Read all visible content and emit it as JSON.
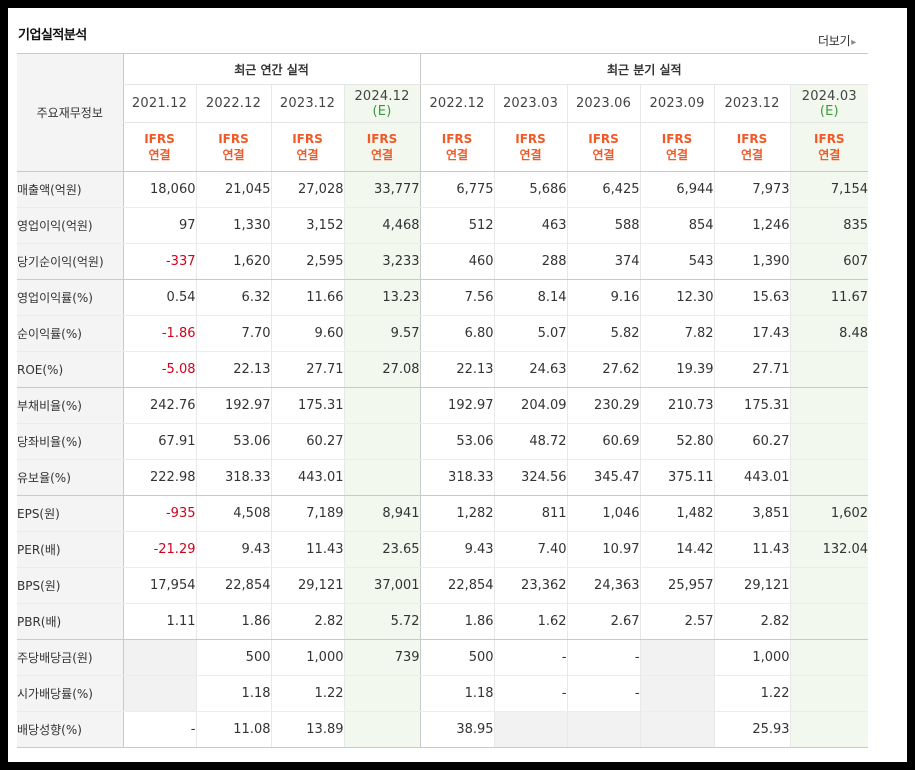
{
  "title": "기업실적분석",
  "more_label": "더보기",
  "headers": {
    "corner": "주요재무정보",
    "annual_group": "최근 연간 실적",
    "quarter_group": "최근 분기 실적",
    "annual_years": [
      {
        "label": "2021.12",
        "est": ""
      },
      {
        "label": "2022.12",
        "est": ""
      },
      {
        "label": "2023.12",
        "est": ""
      },
      {
        "label": "2024.12",
        "est": "(E)"
      }
    ],
    "quarter_periods": [
      {
        "label": "2022.12",
        "est": ""
      },
      {
        "label": "2023.03",
        "est": ""
      },
      {
        "label": "2023.06",
        "est": ""
      },
      {
        "label": "2023.09",
        "est": ""
      },
      {
        "label": "2023.12",
        "est": ""
      },
      {
        "label": "2024.03",
        "est": "(E)"
      }
    ],
    "ifrs_line1": "IFRS",
    "ifrs_line2": "연결"
  },
  "rows": [
    {
      "label": "매출액(억원)",
      "values": [
        "18,060",
        "21,045",
        "27,028",
        "33,777",
        "6,775",
        "5,686",
        "6,425",
        "6,944",
        "7,973",
        "7,154"
      ]
    },
    {
      "label": "영업이익(억원)",
      "values": [
        "97",
        "1,330",
        "3,152",
        "4,468",
        "512",
        "463",
        "588",
        "854",
        "1,246",
        "835"
      ]
    },
    {
      "label": "당기순이익(억원)",
      "values": [
        "-337",
        "1,620",
        "2,595",
        "3,233",
        "460",
        "288",
        "374",
        "543",
        "1,390",
        "607"
      ]
    },
    {
      "label": "영업이익률(%)",
      "values": [
        "0.54",
        "6.32",
        "11.66",
        "13.23",
        "7.56",
        "8.14",
        "9.16",
        "12.30",
        "15.63",
        "11.67"
      ]
    },
    {
      "label": "순이익률(%)",
      "values": [
        "-1.86",
        "7.70",
        "9.60",
        "9.57",
        "6.80",
        "5.07",
        "5.82",
        "7.82",
        "17.43",
        "8.48"
      ]
    },
    {
      "label": "ROE(%)",
      "values": [
        "-5.08",
        "22.13",
        "27.71",
        "27.08",
        "22.13",
        "24.63",
        "27.62",
        "19.39",
        "27.71",
        ""
      ]
    },
    {
      "label": "부채비율(%)",
      "values": [
        "242.76",
        "192.97",
        "175.31",
        "",
        "192.97",
        "204.09",
        "230.29",
        "210.73",
        "175.31",
        ""
      ]
    },
    {
      "label": "당좌비율(%)",
      "values": [
        "67.91",
        "53.06",
        "60.27",
        "",
        "53.06",
        "48.72",
        "60.69",
        "52.80",
        "60.27",
        ""
      ]
    },
    {
      "label": "유보율(%)",
      "values": [
        "222.98",
        "318.33",
        "443.01",
        "",
        "318.33",
        "324.56",
        "345.47",
        "375.11",
        "443.01",
        ""
      ]
    },
    {
      "label": "EPS(원)",
      "values": [
        "-935",
        "4,508",
        "7,189",
        "8,941",
        "1,282",
        "811",
        "1,046",
        "1,482",
        "3,851",
        "1,602"
      ]
    },
    {
      "label": "PER(배)",
      "values": [
        "-21.29",
        "9.43",
        "11.43",
        "23.65",
        "9.43",
        "7.40",
        "10.97",
        "14.42",
        "11.43",
        "132.04"
      ]
    },
    {
      "label": "BPS(원)",
      "values": [
        "17,954",
        "22,854",
        "29,121",
        "37,001",
        "22,854",
        "23,362",
        "24,363",
        "25,957",
        "29,121",
        ""
      ]
    },
    {
      "label": "PBR(배)",
      "values": [
        "1.11",
        "1.86",
        "2.82",
        "5.72",
        "1.86",
        "1.62",
        "2.67",
        "2.57",
        "2.82",
        ""
      ]
    },
    {
      "label": "주당배당금(원)",
      "values": [
        "",
        "500",
        "1,000",
        "739",
        "500",
        "-",
        "-",
        "",
        "1,000",
        ""
      ]
    },
    {
      "label": "시가배당률(%)",
      "values": [
        "",
        "1.18",
        "1.22",
        "",
        "1.18",
        "-",
        "-",
        "",
        "1.22",
        ""
      ]
    },
    {
      "label": "배당성향(%)",
      "values": [
        "-",
        "11.08",
        "13.89",
        "",
        "38.95",
        "",
        "",
        "",
        "25.93",
        ""
      ]
    }
  ],
  "negative_color": "#d0021b",
  "ifrs_color": "#f05a28",
  "estimate_bg": "#f2f8ee"
}
